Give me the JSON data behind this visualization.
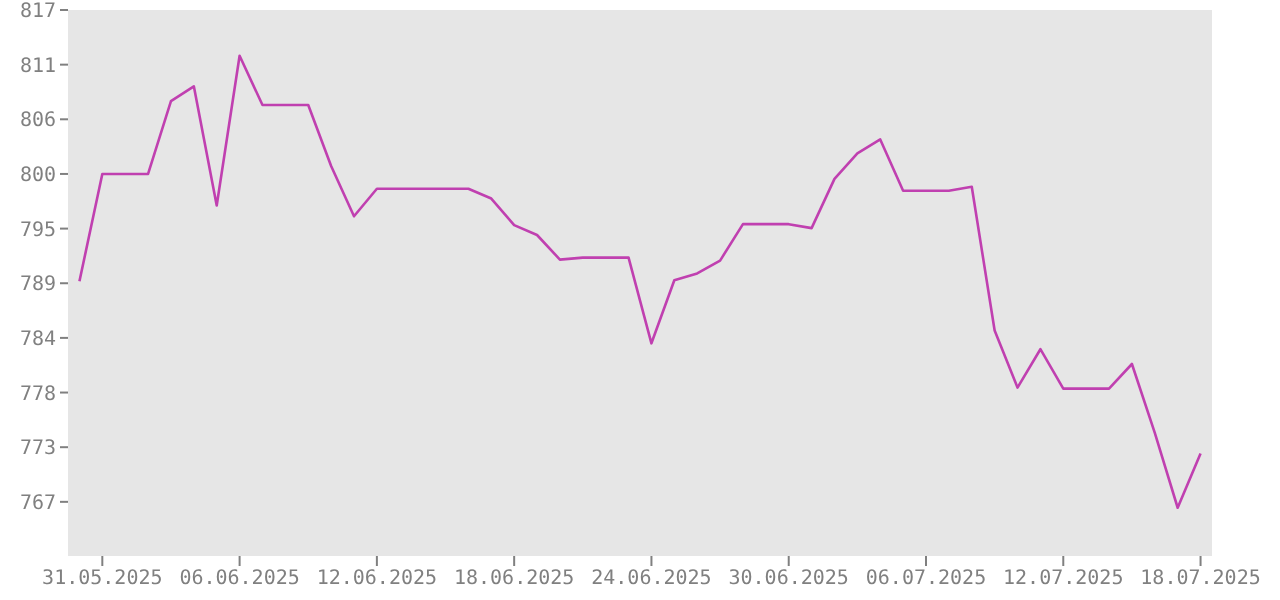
{
  "chart_data": {
    "type": "line",
    "x": [
      "2025-05-30",
      "2025-05-31",
      "2025-06-01",
      "2025-06-02",
      "2025-06-03",
      "2025-06-04",
      "2025-06-05",
      "2025-06-06",
      "2025-06-07",
      "2025-06-08",
      "2025-06-09",
      "2025-06-10",
      "2025-06-11",
      "2025-06-12",
      "2025-06-13",
      "2025-06-14",
      "2025-06-15",
      "2025-06-16",
      "2025-06-17",
      "2025-06-18",
      "2025-06-19",
      "2025-06-20",
      "2025-06-21",
      "2025-06-22",
      "2025-06-23",
      "2025-06-24",
      "2025-06-25",
      "2025-06-26",
      "2025-06-27",
      "2025-06-28",
      "2025-06-29",
      "2025-06-30",
      "2025-07-01",
      "2025-07-02",
      "2025-07-03",
      "2025-07-04",
      "2025-07-05",
      "2025-07-06",
      "2025-07-07",
      "2025-07-08",
      "2025-07-09",
      "2025-07-10",
      "2025-07-11",
      "2025-07-12",
      "2025-07-13",
      "2025-07-14",
      "2025-07-15",
      "2025-07-16",
      "2025-07-17",
      "2025-07-18"
    ],
    "series": [
      {
        "color": "#c040b0",
        "values": [
          789.4,
          800.3,
          800.3,
          800.3,
          807.7,
          809.2,
          797.1,
          812.3,
          807.3,
          807.3,
          807.3,
          801.1,
          796.0,
          798.8,
          798.8,
          798.8,
          798.8,
          798.8,
          797.8,
          795.1,
          794.1,
          791.6,
          791.8,
          791.8,
          791.8,
          783.1,
          789.5,
          790.2,
          791.5,
          795.2,
          795.2,
          795.2,
          794.8,
          799.8,
          802.4,
          803.8,
          798.6,
          798.6,
          798.6,
          799.0,
          784.4,
          778.6,
          782.5,
          778.5,
          778.5,
          778.5,
          781.0,
          774.0,
          766.4,
          771.9
        ]
      }
    ],
    "xlim": [
      "2025-05-29T12:00",
      "2025-07-18T12:00"
    ],
    "xticks": [
      {
        "value": "2025-05-31",
        "label": "31.05.2025"
      },
      {
        "value": "2025-06-06",
        "label": "06.06.2025"
      },
      {
        "value": "2025-06-12",
        "label": "12.06.2025"
      },
      {
        "value": "2025-06-18",
        "label": "18.06.2025"
      },
      {
        "value": "2025-06-24",
        "label": "24.06.2025"
      },
      {
        "value": "2025-06-30",
        "label": "30.06.2025"
      },
      {
        "value": "2025-07-06",
        "label": "06.07.2025"
      },
      {
        "value": "2025-07-12",
        "label": "12.07.2025"
      },
      {
        "value": "2025-07-18",
        "label": "18.07.2025"
      }
    ],
    "ylim": [
      761.5,
      816.95
    ],
    "yticks": [
      {
        "value": 767,
        "label": "767"
      },
      {
        "value": 772.55,
        "label": "773"
      },
      {
        "value": 778.1,
        "label": "778"
      },
      {
        "value": 783.65,
        "label": "784"
      },
      {
        "value": 789.2,
        "label": "789"
      },
      {
        "value": 794.75,
        "label": "795"
      },
      {
        "value": 800.3,
        "label": "800"
      },
      {
        "value": 805.85,
        "label": "806"
      },
      {
        "value": 811.4,
        "label": "811"
      },
      {
        "value": 816.95,
        "label": "817"
      }
    ],
    "legend": false,
    "marker": "none",
    "line_style": "solid"
  }
}
